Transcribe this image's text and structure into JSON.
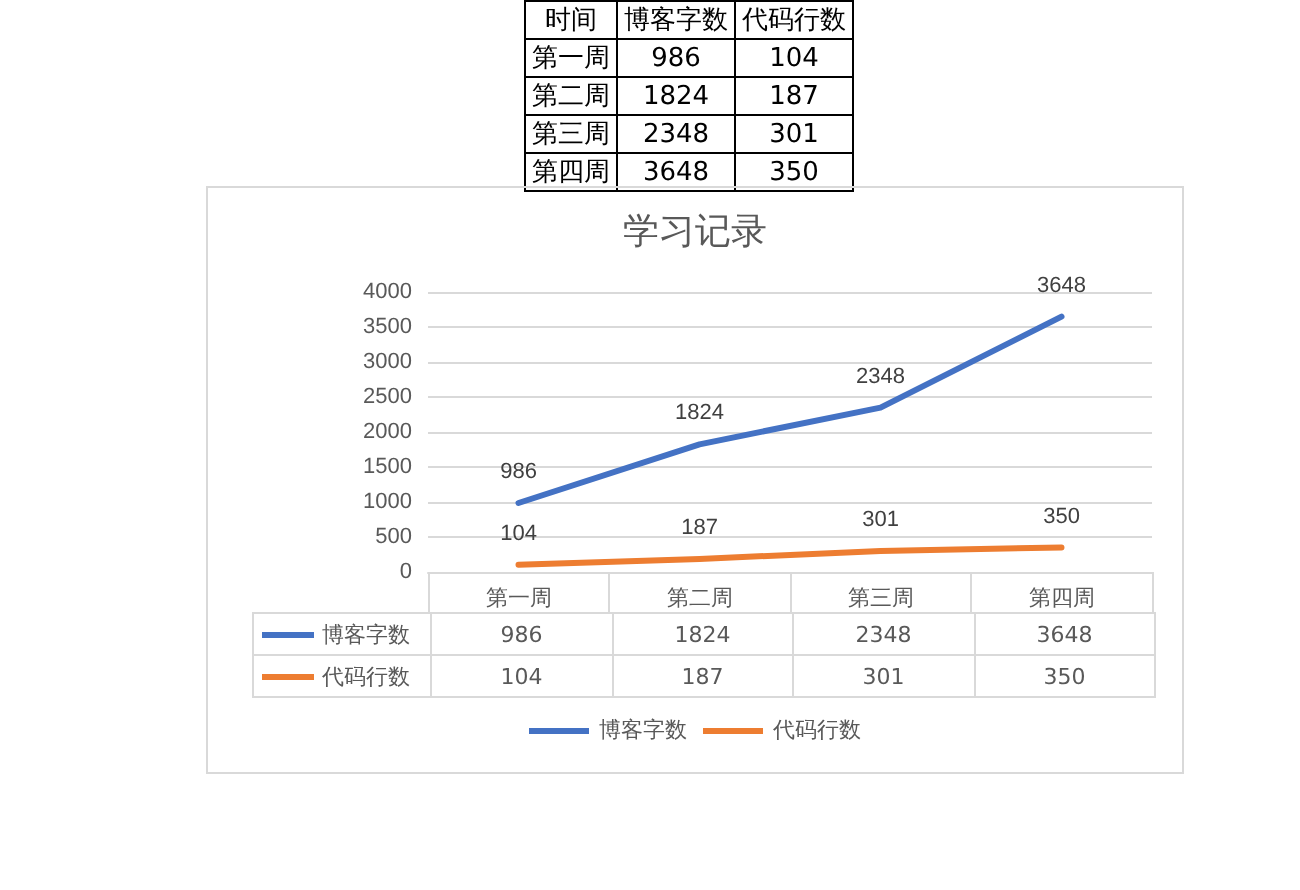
{
  "chart_data": [
    {
      "type": "other",
      "annotations": [
        "时间",
        "博客字数",
        "代码行数",
        "第一周",
        "986",
        "104",
        "第二周",
        "1824",
        "187",
        "第三周",
        "2348",
        "301",
        "第四周",
        "3648",
        "350"
      ]
    },
    {
      "type": "line",
      "title": "学习记录",
      "categories": [
        "第一周",
        "第二周",
        "第三周",
        "第四周"
      ],
      "series": [
        {
          "name": "博客字数",
          "color": "#4472c4",
          "values": [
            986,
            1824,
            2348,
            3648
          ],
          "value_labels": [
            "986",
            "1824",
            "2348",
            "3648"
          ]
        },
        {
          "name": "代码行数",
          "color": "#ed7d31",
          "values": [
            104,
            187,
            301,
            350
          ],
          "value_labels": [
            "104",
            "187",
            "301",
            "350"
          ]
        }
      ],
      "ylim": [
        0,
        4000
      ],
      "yticks": [
        0,
        500,
        1000,
        1500,
        2000,
        2500,
        3000,
        3500,
        4000
      ],
      "grid": "y",
      "legend": "bottom",
      "marker": "none",
      "line_style": "solid",
      "data_labels": true
    }
  ]
}
